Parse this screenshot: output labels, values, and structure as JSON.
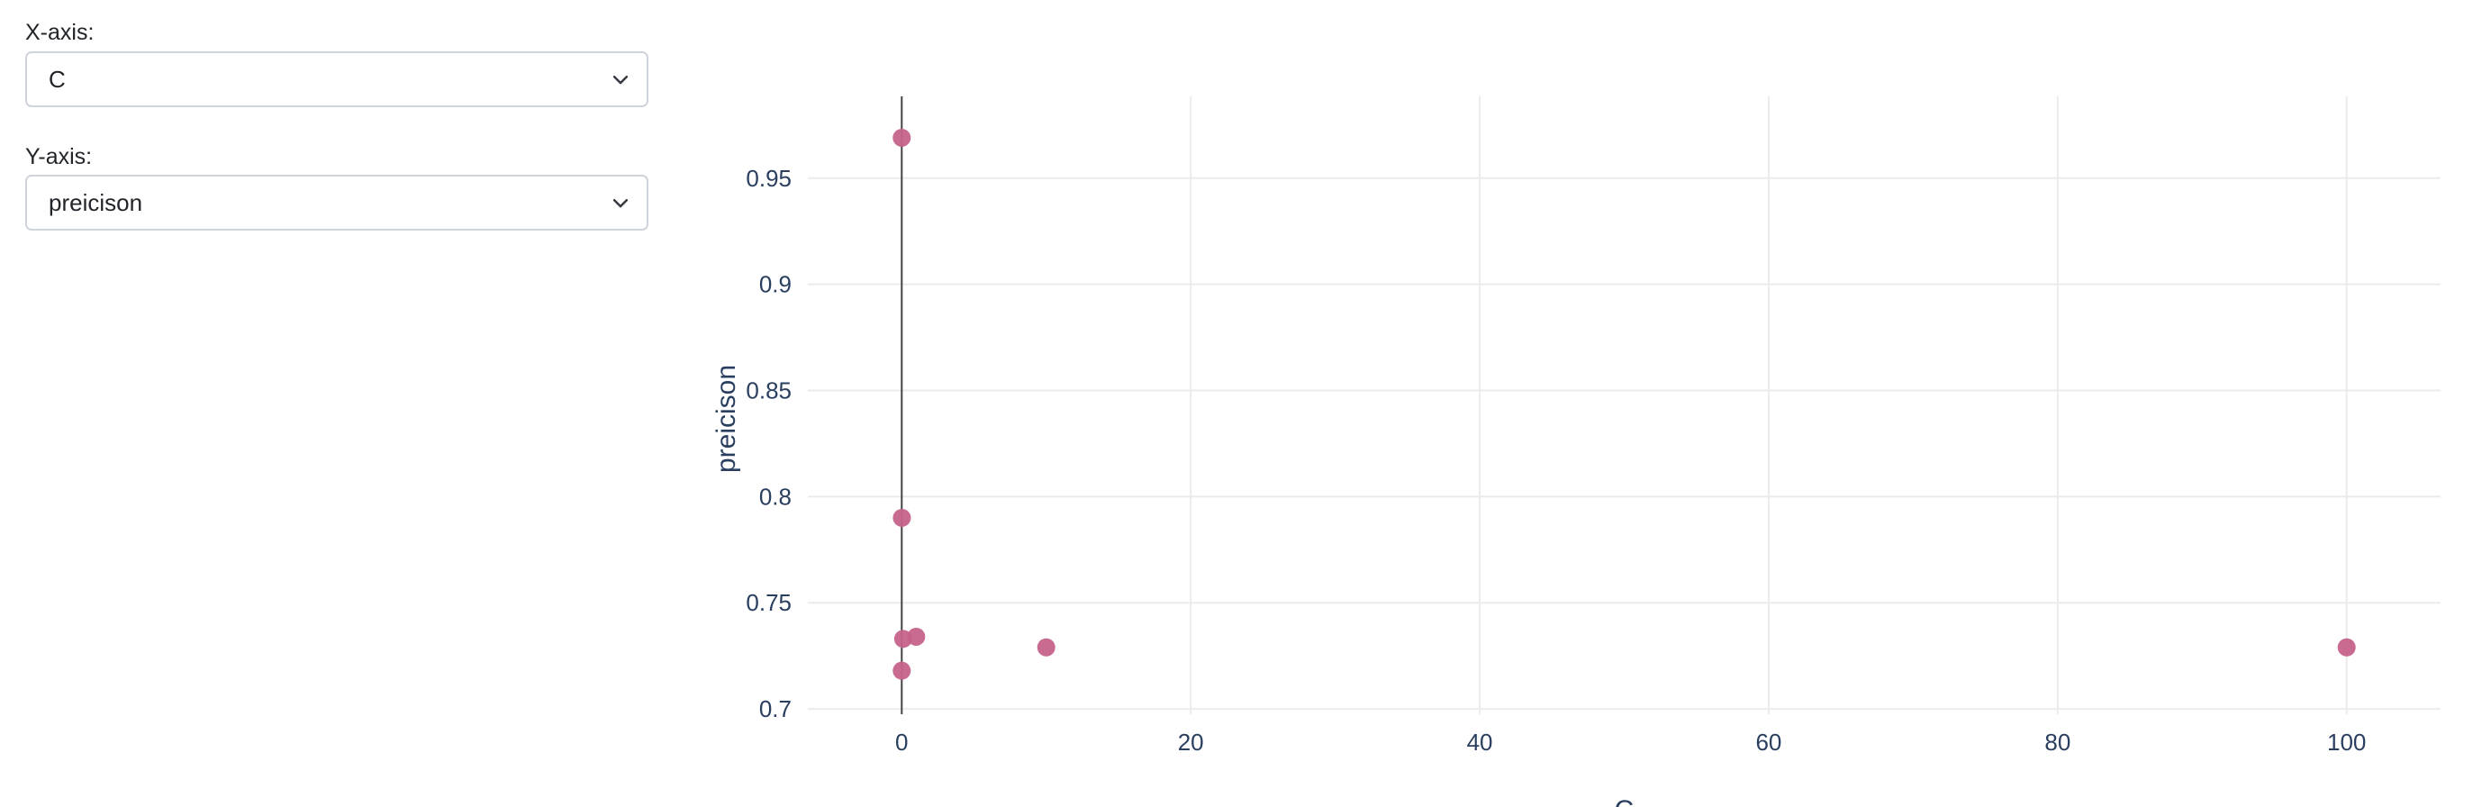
{
  "controls": {
    "x_axis": {
      "label": "X-axis:",
      "selected": "C"
    },
    "y_axis": {
      "label": "Y-axis:",
      "selected": "preicison"
    },
    "chevron_icon": "chevron-down-icon"
  },
  "chart_data": {
    "type": "scatter",
    "title": "",
    "xlabel": "C",
    "ylabel": "preicison",
    "xlim": [
      -6.5,
      106.5
    ],
    "ylim": [
      0.6975,
      0.9885
    ],
    "xticks": [
      0,
      20,
      40,
      60,
      80,
      100
    ],
    "yticks": [
      0.7,
      0.75,
      0.8,
      0.85,
      0.9,
      0.95
    ],
    "ytick_labels": [
      "0.7",
      "0.75",
      "0.8",
      "0.85",
      "0.9",
      "0.95"
    ],
    "grid": true,
    "marker_color": "#c6628a",
    "points": [
      {
        "x": 0.001,
        "y": 0.969
      },
      {
        "x": 0.01,
        "y": 0.79
      },
      {
        "x": 0.1,
        "y": 0.733
      },
      {
        "x": 0.001,
        "y": 0.718
      },
      {
        "x": 1,
        "y": 0.734
      },
      {
        "x": 10,
        "y": 0.729
      },
      {
        "x": 100,
        "y": 0.729
      }
    ]
  }
}
